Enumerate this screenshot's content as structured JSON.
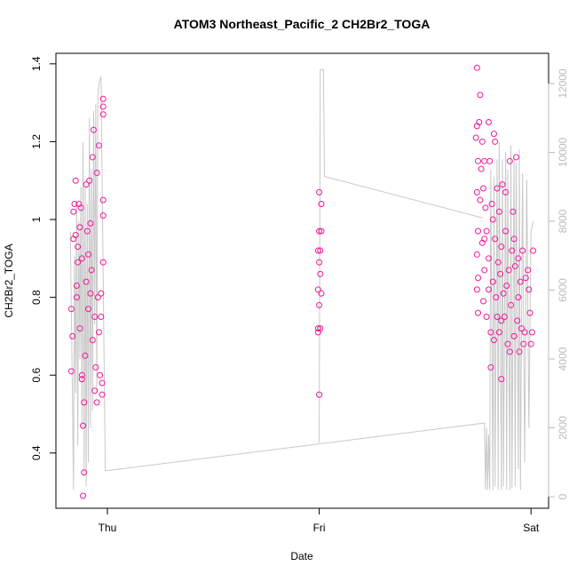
{
  "chart_data": {
    "type": "scatter",
    "title": "ATOM3 Northeast_Pacific_2 CH2Br2_TOGA",
    "x_label": "Date",
    "y_label": "CH2Br2_TOGA",
    "xlim": [
      -0.243,
      2.083
    ],
    "xticks": [
      {
        "value": 0,
        "label": "Thu"
      },
      {
        "value": 1,
        "label": "Fri"
      },
      {
        "value": 2,
        "label": "Sat"
      }
    ],
    "ylim": [
      0.258,
      1.427
    ],
    "yticks": [
      0.4,
      0.6,
      0.8,
      1.0,
      1.2,
      1.4
    ],
    "y2lim": [
      -335,
      12877
    ],
    "y2ticks": [
      0,
      2000,
      4000,
      6000,
      8000,
      10000,
      12000
    ],
    "y2color": "#bbbbbb",
    "series": [
      {
        "name": "CH2Br2_TOGA",
        "type": "scatter",
        "color": "#f0199a",
        "x": [
          -0.17,
          -0.17,
          -0.165,
          -0.16,
          -0.16,
          -0.155,
          -0.15,
          -0.15,
          -0.145,
          -0.14,
          -0.14,
          -0.135,
          -0.13,
          -0.13,
          -0.125,
          -0.12,
          -0.12,
          -0.115,
          -0.11,
          -0.11,
          -0.105,
          -0.1,
          -0.1,
          -0.095,
          -0.09,
          -0.09,
          -0.085,
          -0.08,
          -0.08,
          -0.075,
          -0.07,
          -0.07,
          -0.065,
          -0.06,
          -0.06,
          -0.055,
          -0.05,
          -0.05,
          -0.045,
          -0.04,
          -0.04,
          -0.035,
          -0.03,
          -0.03,
          -0.025,
          -0.02,
          -0.02,
          -0.02,
          -0.02,
          -0.02,
          -0.02,
          -0.025,
          -0.115,
          -0.12,
          -0.145,
          1.0,
          1.0,
          1.01,
          1.005,
          0.995,
          1.0,
          1.005,
          0.995,
          1.0,
          1.01,
          0.995,
          0.995,
          1.0,
          1.01,
          1.005,
          1.745,
          1.74,
          1.745,
          1.75,
          1.745,
          1.75,
          1.745,
          1.75,
          1.745,
          1.75,
          1.755,
          1.76,
          1.76,
          1.765,
          1.77,
          1.77,
          1.775,
          1.775,
          1.78,
          1.78,
          1.785,
          1.79,
          1.79,
          1.8,
          1.8,
          1.805,
          1.81,
          1.81,
          1.815,
          1.82,
          1.825,
          1.825,
          1.83,
          1.83,
          1.835,
          1.84,
          1.84,
          1.845,
          1.85,
          1.85,
          1.855,
          1.86,
          1.86,
          1.865,
          1.87,
          1.875,
          1.88,
          1.885,
          1.89,
          1.895,
          1.9,
          1.905,
          1.91,
          1.915,
          1.92,
          1.925,
          1.93,
          1.935,
          1.94,
          1.945,
          1.95,
          1.955,
          1.96,
          1.965,
          1.97,
          1.975,
          1.78,
          1.8,
          1.82,
          1.86,
          1.88,
          1.9,
          1.92,
          1.94,
          1.99,
          2.0,
          2.005,
          2.01,
          1.995,
          1.985
        ],
        "values": [
          0.77,
          0.61,
          0.7,
          0.95,
          1.02,
          1.04,
          0.96,
          1.1,
          0.8,
          0.93,
          0.89,
          1.04,
          0.72,
          0.98,
          1.03,
          0.9,
          0.6,
          0.29,
          0.35,
          0.53,
          0.65,
          0.84,
          1.09,
          0.97,
          0.91,
          0.77,
          1.1,
          0.81,
          0.99,
          0.87,
          1.16,
          0.69,
          1.23,
          0.75,
          0.56,
          0.62,
          1.12,
          0.53,
          0.8,
          1.19,
          0.71,
          0.6,
          0.81,
          0.75,
          0.55,
          1.31,
          1.29,
          1.27,
          1.05,
          1.01,
          0.89,
          0.58,
          0.47,
          0.59,
          0.83,
          1.07,
          0.97,
          1.04,
          0.92,
          0.92,
          0.89,
          0.86,
          0.82,
          0.78,
          0.81,
          0.72,
          0.71,
          0.55,
          0.97,
          0.72,
          1.39,
          1.21,
          1.24,
          1.15,
          1.07,
          0.97,
          0.91,
          0.85,
          0.82,
          0.76,
          1.25,
          1.32,
          1.05,
          1.13,
          1.2,
          0.94,
          1.08,
          0.79,
          1.15,
          0.87,
          1.03,
          0.97,
          0.75,
          1.25,
          0.9,
          1.15,
          0.71,
          0.62,
          1.04,
          0.84,
          1.22,
          0.69,
          1.2,
          0.95,
          0.8,
          1.08,
          0.75,
          0.89,
          1.02,
          0.71,
          0.86,
          0.93,
          0.59,
          1.09,
          0.81,
          0.75,
          0.97,
          0.83,
          0.68,
          0.87,
          1.15,
          0.78,
          0.92,
          1.02,
          0.7,
          0.88,
          1.16,
          0.74,
          0.8,
          0.66,
          0.84,
          0.72,
          0.92,
          0.68,
          0.71,
          0.85,
          0.95,
          0.82,
          1.0,
          0.74,
          1.07,
          0.66,
          0.95,
          0.9,
          0.82,
          0.68,
          0.71,
          0.92,
          0.76,
          0.87
        ]
      },
      {
        "type": "line",
        "axis": "y2",
        "color": "#c8c8c8",
        "x": [
          -0.175,
          -0.165,
          -0.16,
          -0.155,
          -0.15,
          -0.145,
          -0.14,
          -0.135,
          -0.13,
          -0.125,
          -0.12,
          -0.115,
          -0.11,
          -0.105,
          -0.1,
          -0.095,
          -0.09,
          -0.085,
          -0.08,
          -0.075,
          -0.07,
          -0.065,
          -0.06,
          -0.055,
          -0.05,
          -0.045,
          -0.04,
          -0.03,
          -0.01,
          1.78,
          1.785,
          1.79,
          1.795,
          1.8,
          1.805,
          1.81,
          1.82,
          1.825,
          1.83,
          1.84,
          1.845,
          1.85,
          1.86,
          1.865,
          1.87,
          1.88,
          1.885,
          1.89,
          1.9,
          1.905,
          1.91,
          1.92,
          1.925,
          1.93,
          1.94,
          1.945,
          1.95,
          1.96,
          1.97,
          1.98,
          1.99,
          2.0,
          2.01,
          null,
          1.0,
          1.005,
          1.02,
          1.025,
          1.77
        ],
        "values": [
          7700,
          3000,
          200,
          7000,
          3000,
          8500,
          1500,
          8000,
          4000,
          9000,
          2000,
          10300,
          600,
          9000,
          300,
          8500,
          1000,
          11000,
          2000,
          9500,
          2500,
          11200,
          5000,
          11400,
          3000,
          11600,
          12000,
          12200,
          750,
          2140,
          200,
          2000,
          200,
          1800,
          200,
          9500,
          200,
          9300,
          300,
          9800,
          200,
          10300,
          200,
          9800,
          300,
          10000,
          200,
          9500,
          200,
          10200,
          250,
          9900,
          300,
          9700,
          800,
          10100,
          200,
          9400,
          1000,
          9200,
          2000,
          7700,
          8000,
          null,
          1575,
          12400,
          12400,
          9300,
          8100
        ]
      }
    ]
  }
}
